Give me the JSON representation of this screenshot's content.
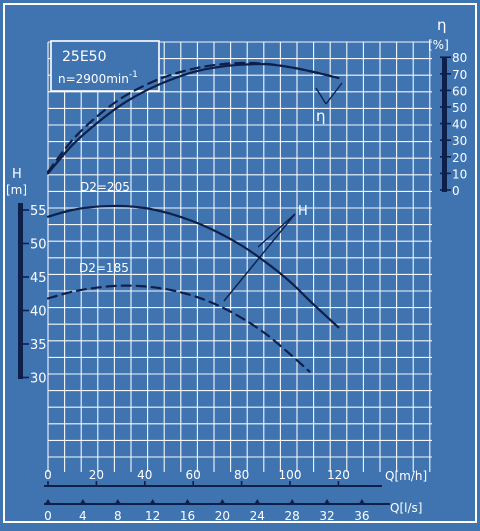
{
  "chart_data": {
    "type": "line",
    "model": "25E50",
    "speed": "n=2900min",
    "speed_sup": "-1",
    "head_axis": {
      "symbol": "H",
      "unit": "[m]",
      "range": [
        30,
        55
      ],
      "ticks": [
        55,
        50,
        45,
        40,
        35,
        30
      ],
      "tick_labels": [
        "55",
        "50",
        "45",
        "40",
        "35",
        "30"
      ]
    },
    "eff_axis": {
      "symbol": "η",
      "unit": "[%]",
      "range": [
        0,
        80
      ],
      "ticks": [
        80,
        70,
        60,
        50,
        40,
        30,
        20,
        10,
        0
      ],
      "tick_labels": [
        "80",
        "70",
        "60",
        "50",
        "40",
        "30",
        "20",
        "10",
        "0"
      ]
    },
    "q_m3h_axis": {
      "label": "Q[m/h]",
      "range": [
        0,
        140
      ],
      "ticks": [
        0,
        20,
        40,
        60,
        80,
        100,
        120
      ],
      "tick_labels": [
        "0",
        "20",
        "40",
        "60",
        "80",
        "100",
        "120"
      ]
    },
    "q_ls_axis": {
      "label": "Q[l/s]",
      "ticks": [
        0,
        4,
        8,
        12,
        16,
        20,
        24,
        28,
        32,
        36
      ],
      "tick_labels": [
        "0",
        "4",
        "8",
        "12",
        "16",
        "20",
        "24",
        "28",
        "32",
        "36"
      ]
    },
    "grid": true,
    "series": [
      {
        "name": "D2=205",
        "kind": "head",
        "style": "solid",
        "x": [
          0,
          10,
          20,
          30,
          40,
          50,
          60,
          70,
          80,
          90,
          100,
          110,
          120
        ],
        "y": [
          54.0,
          55.0,
          55.5,
          55.6,
          55.3,
          54.5,
          53.3,
          51.7,
          49.7,
          47.2,
          44.3,
          40.8,
          37.5
        ]
      },
      {
        "name": "D2=185",
        "kind": "head",
        "style": "dashed",
        "x": [
          0,
          10,
          20,
          30,
          40,
          50,
          60,
          70,
          80,
          90,
          100,
          108
        ],
        "y": [
          41.8,
          42.8,
          43.4,
          43.7,
          43.6,
          43.1,
          42.2,
          40.8,
          38.9,
          36.5,
          33.5,
          30.9
        ]
      },
      {
        "kind": "efficiency",
        "style": "solid",
        "x": [
          0,
          10,
          20,
          30,
          40,
          50,
          60,
          70,
          80,
          90,
          100,
          110,
          120
        ],
        "y": [
          10,
          27,
          40,
          51,
          59.5,
          66,
          71,
          74,
          75.5,
          75.8,
          74,
          71,
          67.5
        ]
      },
      {
        "kind": "efficiency",
        "style": "dashed",
        "x": [
          0,
          10,
          20,
          30,
          40,
          50,
          60,
          70,
          80,
          90,
          100,
          110,
          120
        ],
        "y": [
          11,
          30,
          44,
          55,
          63,
          69,
          73,
          75.5,
          76.5,
          76,
          74,
          71,
          67.5
        ]
      }
    ],
    "annotations": {
      "head_callout": "H",
      "eff_callout": "η",
      "d205": "D2=205",
      "d185": "D2=185"
    }
  }
}
